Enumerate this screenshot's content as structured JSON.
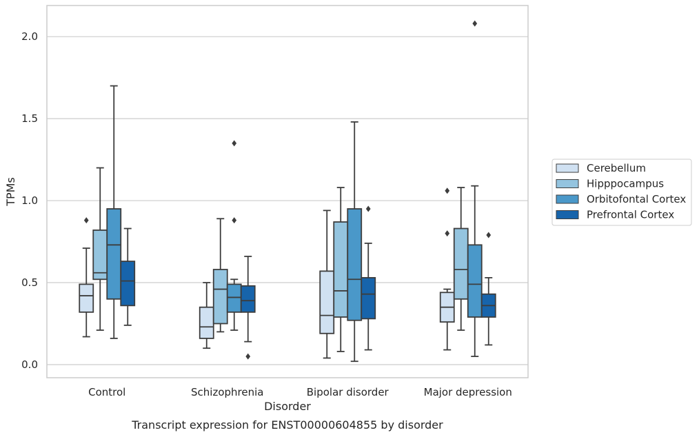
{
  "chart_data": {
    "type": "box",
    "caption": "Transcript expression for ENST00000604855 by disorder",
    "xlabel": "Disorder",
    "ylabel": "TPMs",
    "ylim": [
      -0.08,
      2.19
    ],
    "yticks": [
      0.0,
      0.5,
      1.0,
      1.5,
      2.0
    ],
    "ytick_labels": [
      "0.0",
      "0.5",
      "1.0",
      "1.5",
      "2.0"
    ],
    "grid": "horizontal",
    "legend_position": "right",
    "categories": [
      "Control",
      "Schizophrenia",
      "Bipolar disorder",
      "Major depression"
    ],
    "series": [
      {
        "name": "Cerebellum",
        "color": "#d0e1f2",
        "boxes": [
          {
            "whislo": 0.17,
            "q1": 0.32,
            "med": 0.42,
            "q3": 0.49,
            "whishi": 0.71,
            "fliers": [
              0.88
            ]
          },
          {
            "whislo": 0.1,
            "q1": 0.16,
            "med": 0.23,
            "q3": 0.35,
            "whishi": 0.5,
            "fliers": []
          },
          {
            "whislo": 0.04,
            "q1": 0.19,
            "med": 0.3,
            "q3": 0.57,
            "whishi": 0.94,
            "fliers": []
          },
          {
            "whislo": 0.09,
            "q1": 0.26,
            "med": 0.35,
            "q3": 0.44,
            "whishi": 0.46,
            "fliers": [
              0.8,
              1.06
            ]
          }
        ]
      },
      {
        "name": "Hipppocampus",
        "color": "#94c4df",
        "boxes": [
          {
            "whislo": 0.21,
            "q1": 0.52,
            "med": 0.56,
            "q3": 0.82,
            "whishi": 1.2,
            "fliers": []
          },
          {
            "whislo": 0.2,
            "q1": 0.25,
            "med": 0.46,
            "q3": 0.58,
            "whishi": 0.89,
            "fliers": []
          },
          {
            "whislo": 0.08,
            "q1": 0.29,
            "med": 0.45,
            "q3": 0.87,
            "whishi": 1.08,
            "fliers": []
          },
          {
            "whislo": 0.21,
            "q1": 0.4,
            "med": 0.58,
            "q3": 0.83,
            "whishi": 1.08,
            "fliers": []
          }
        ]
      },
      {
        "name": "Orbitofontal Cortex",
        "color": "#4a98c9",
        "boxes": [
          {
            "whislo": 0.16,
            "q1": 0.4,
            "med": 0.73,
            "q3": 0.95,
            "whishi": 1.7,
            "fliers": []
          },
          {
            "whislo": 0.21,
            "q1": 0.32,
            "med": 0.41,
            "q3": 0.49,
            "whishi": 0.52,
            "fliers": [
              0.88,
              1.35
            ]
          },
          {
            "whislo": 0.02,
            "q1": 0.27,
            "med": 0.52,
            "q3": 0.95,
            "whishi": 1.48,
            "fliers": []
          },
          {
            "whislo": 0.05,
            "q1": 0.29,
            "med": 0.49,
            "q3": 0.73,
            "whishi": 1.09,
            "fliers": [
              2.08
            ]
          }
        ]
      },
      {
        "name": "Prefrontal Cortex",
        "color": "#1764ab",
        "boxes": [
          {
            "whislo": 0.24,
            "q1": 0.36,
            "med": 0.51,
            "q3": 0.63,
            "whishi": 0.83,
            "fliers": []
          },
          {
            "whislo": 0.14,
            "q1": 0.32,
            "med": 0.39,
            "q3": 0.48,
            "whishi": 0.66,
            "fliers": [
              0.05
            ]
          },
          {
            "whislo": 0.09,
            "q1": 0.28,
            "med": 0.43,
            "q3": 0.53,
            "whishi": 0.74,
            "fliers": [
              0.95
            ]
          },
          {
            "whislo": 0.12,
            "q1": 0.29,
            "med": 0.36,
            "q3": 0.43,
            "whishi": 0.53,
            "fliers": [
              0.79
            ]
          }
        ]
      }
    ]
  }
}
